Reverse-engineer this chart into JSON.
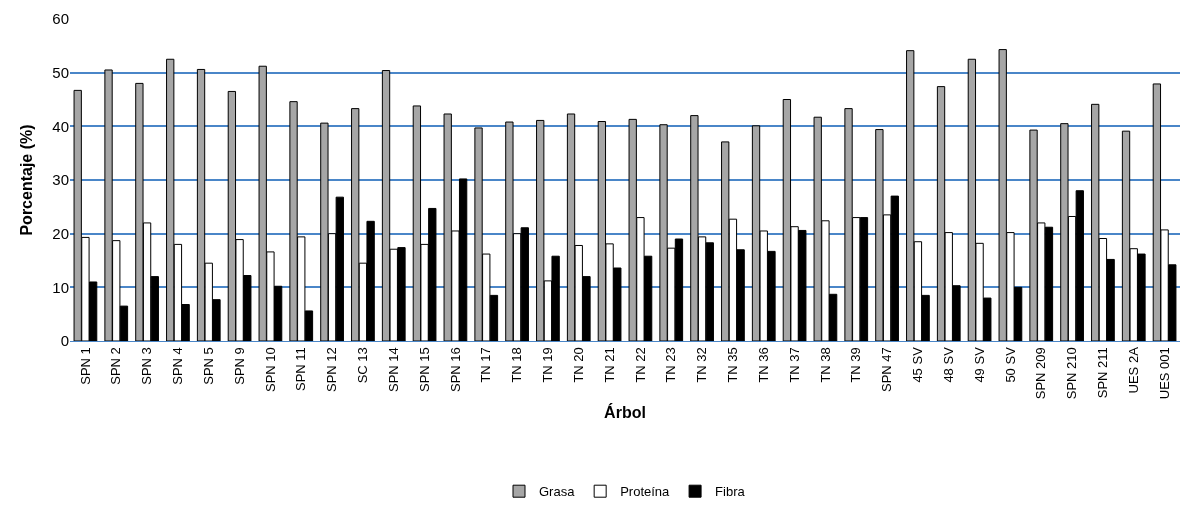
{
  "chart_data": {
    "type": "bar",
    "xlabel": "Árbol",
    "ylabel": "Porcentaje (%)",
    "categories": [
      "SPN 1",
      "SPN 2",
      "SPN 3",
      "SPN 4",
      "SPN 5",
      "SPN 9",
      "SPN 10",
      "SPN 11",
      "SPN 12",
      "SC 13",
      "SPN 14",
      "SPN 15",
      "SPN 16",
      "TN 17",
      "TN 18",
      "TN 19",
      "TN 20",
      "TN 21",
      "TN 22",
      "TN 23",
      "TN 32",
      "TN 35",
      "TN 36",
      "TN 37",
      "TN 38",
      "TN 39",
      "SPN 47",
      "45 SV",
      "48 SV",
      "49 SV",
      "50 SV",
      "SPN 209",
      "SPN 210",
      "SPN 211",
      "UES 2A",
      "UES 001"
    ],
    "series": [
      {
        "name": "Grasa",
        "color": "#a6a6a6",
        "values": [
          46.7,
          50.5,
          48,
          52.5,
          50.6,
          46.5,
          51.2,
          44.6,
          40.6,
          43.3,
          50.4,
          43.8,
          42.3,
          39.7,
          40.8,
          41.1,
          42.3,
          40.9,
          41.3,
          40.3,
          42,
          37.1,
          40.1,
          45,
          41.7,
          43.3,
          39.4,
          54.1,
          47.4,
          52.5,
          54.3,
          39.3,
          40.5,
          44.1,
          39.1,
          47.9
        ]
      },
      {
        "name": "Proteína",
        "color": "#ffffff",
        "values": [
          19.3,
          18.7,
          22,
          18,
          14.5,
          18.9,
          16.6,
          19.4,
          20,
          14.5,
          17.1,
          18,
          20.5,
          16.2,
          20,
          11.2,
          17.8,
          18.1,
          23,
          17.3,
          19.4,
          22.7,
          20.5,
          21.3,
          22.4,
          23,
          23.5,
          18.5,
          20.2,
          18.2,
          20.2,
          22,
          23.2,
          19.1,
          17.2,
          20.7
        ]
      },
      {
        "name": "Fibra",
        "color": "#000000",
        "values": [
          11,
          6.5,
          12,
          6.8,
          7.7,
          12.2,
          10.2,
          5.6,
          26.8,
          22.3,
          17.4,
          24.7,
          30.2,
          8.5,
          21.1,
          15.8,
          12,
          13.6,
          15.8,
          19,
          18.3,
          17,
          16.7,
          20.6,
          8.7,
          23,
          27,
          8.5,
          10.3,
          8,
          10,
          21.2,
          28,
          15.2,
          16.2,
          14.2
        ]
      }
    ],
    "ylim": [
      0,
      60
    ],
    "yticks": [
      0,
      10,
      20,
      30,
      40,
      50,
      60
    ],
    "grid": "y",
    "legend": "bottom"
  }
}
